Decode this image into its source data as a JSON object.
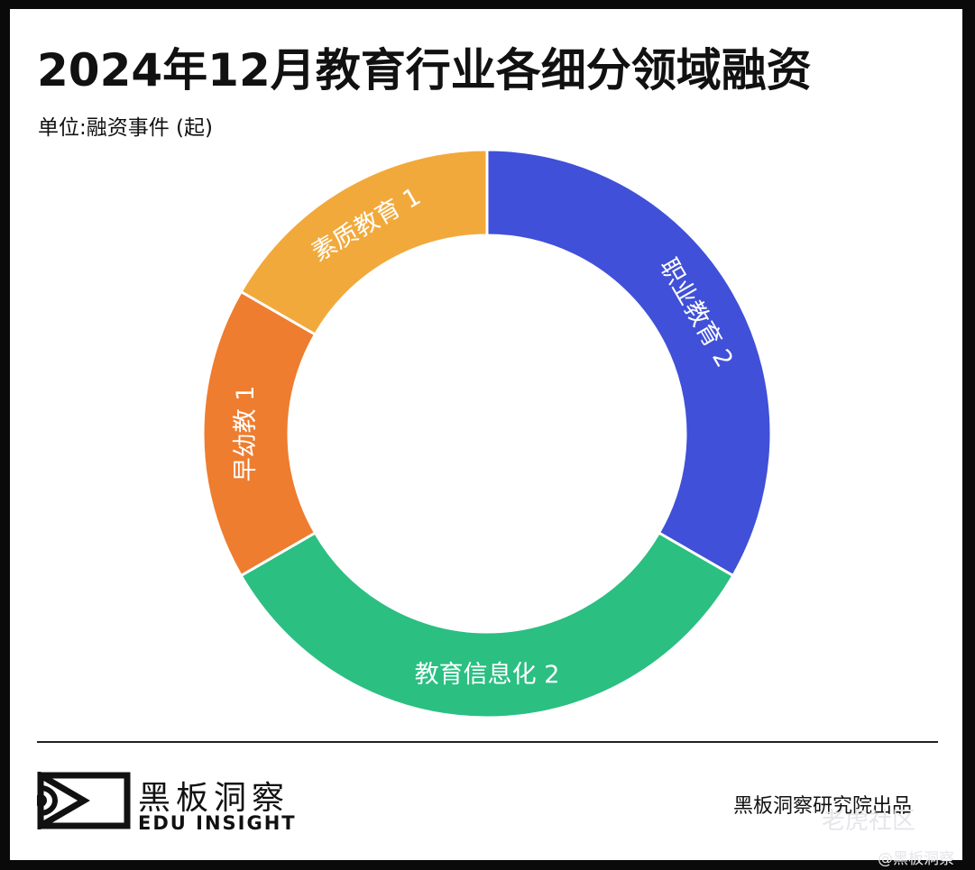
{
  "header": {
    "title": "2024年12月教育行业各细分领域融资",
    "unit": "单位:融资事件 (起)"
  },
  "chart_data": {
    "type": "pie",
    "donut": true,
    "title": "2024年12月教育行业各细分领域融资",
    "unit_label": "单位:融资事件 (起)",
    "categories": [
      "职业教育",
      "教育信息化",
      "早幼教",
      "素质教育"
    ],
    "values": [
      2,
      2,
      1,
      1
    ],
    "colors": [
      "#4050d8",
      "#2bbf82",
      "#ee7d2f",
      "#f2a93b"
    ],
    "label_color": "#ffffff",
    "legend": "none"
  },
  "footer": {
    "brand_cn": "黑板洞察",
    "brand_en": "EDU INSIGHT",
    "publisher": "黑板洞察研究院出品",
    "watermark": "老虎社区",
    "watermark_handle": "@黑板洞察"
  }
}
